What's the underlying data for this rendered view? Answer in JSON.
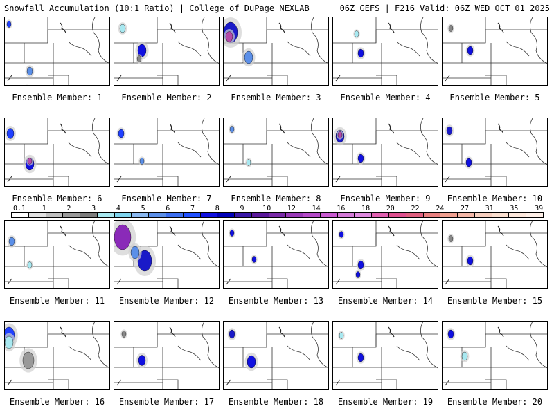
{
  "header": {
    "left": "Snowfall Accumulation (10:1 Ratio) | College of DuPage NEXLAB",
    "right": "06Z GEFS | F216 Valid: 06Z WED OCT 01 2025"
  },
  "panel_label_prefix": "Ensemble Member: ",
  "members": [
    {
      "n": "1",
      "blobs": [
        [
          6,
          10,
          3,
          "#2040ff"
        ],
        [
          36,
          78,
          4,
          "#5b8fe8"
        ],
        [
          32,
          102,
          2,
          "#1010ff"
        ]
      ]
    },
    {
      "n": "2",
      "blobs": [
        [
          12,
          16,
          4,
          "#a8e8f0"
        ],
        [
          40,
          48,
          6,
          "#1010e0"
        ],
        [
          36,
          60,
          3,
          "#888888"
        ]
      ]
    },
    {
      "n": "3",
      "blobs": [
        [
          10,
          22,
          10,
          "#1a1ac8"
        ],
        [
          8,
          28,
          5,
          "#b44aa8"
        ],
        [
          36,
          58,
          6,
          "#5b8fe8"
        ]
      ]
    },
    {
      "n": "4",
      "blobs": [
        [
          34,
          24,
          3,
          "#a8e8f0"
        ],
        [
          40,
          52,
          4,
          "#1010e0"
        ]
      ]
    },
    {
      "n": "5",
      "blobs": [
        [
          12,
          16,
          3,
          "#888888"
        ],
        [
          40,
          48,
          4,
          "#1010e0"
        ]
      ]
    },
    {
      "n": "6",
      "blobs": [
        [
          8,
          22,
          5,
          "#2040ff"
        ],
        [
          36,
          66,
          6,
          "#1010e0"
        ],
        [
          36,
          62,
          3,
          "#b44aa8"
        ]
      ]
    },
    {
      "n": "7",
      "blobs": [
        [
          10,
          22,
          4,
          "#2040ff"
        ],
        [
          40,
          62,
          3,
          "#5b8fe8"
        ]
      ]
    },
    {
      "n": "8",
      "blobs": [
        [
          12,
          16,
          3,
          "#5b8fe8"
        ],
        [
          36,
          64,
          3,
          "#a8e8f0"
        ]
      ]
    },
    {
      "n": "9",
      "blobs": [
        [
          10,
          26,
          6,
          "#1a1ac8"
        ],
        [
          10,
          24,
          3,
          "#b44aa8"
        ],
        [
          40,
          58,
          4,
          "#1010e0"
        ]
      ]
    },
    {
      "n": "10",
      "blobs": [
        [
          10,
          18,
          4,
          "#1a1ac8"
        ],
        [
          38,
          64,
          4,
          "#1010e0"
        ]
      ]
    },
    {
      "n": "11",
      "blobs": [
        [
          10,
          30,
          4,
          "#5b8fe8"
        ],
        [
          36,
          64,
          3,
          "#a8e8f0"
        ]
      ]
    },
    {
      "n": "12",
      "blobs": [
        [
          12,
          24,
          12,
          "#8a2ab8"
        ],
        [
          44,
          58,
          10,
          "#1a1ac8"
        ],
        [
          30,
          46,
          6,
          "#5b8fe8"
        ]
      ]
    },
    {
      "n": "13",
      "blobs": [
        [
          12,
          18,
          3,
          "#1010e0"
        ],
        [
          44,
          56,
          3,
          "#1010e0"
        ]
      ]
    },
    {
      "n": "14",
      "blobs": [
        [
          12,
          20,
          3,
          "#1010e0"
        ],
        [
          40,
          64,
          4,
          "#1010e0"
        ],
        [
          36,
          78,
          3,
          "#1010e0"
        ]
      ]
    },
    {
      "n": "15",
      "blobs": [
        [
          12,
          26,
          3,
          "#888888"
        ],
        [
          40,
          58,
          4,
          "#1010e0"
        ]
      ]
    },
    {
      "n": "16",
      "blobs": [
        [
          6,
          20,
          8,
          "#2040ff"
        ],
        [
          6,
          30,
          6,
          "#a8e8f0"
        ],
        [
          34,
          56,
          8,
          "#999999"
        ]
      ]
    },
    {
      "n": "17",
      "blobs": [
        [
          14,
          18,
          3,
          "#888888"
        ],
        [
          40,
          56,
          5,
          "#1010e0"
        ]
      ]
    },
    {
      "n": "18",
      "blobs": [
        [
          12,
          18,
          4,
          "#1a1ac8"
        ],
        [
          40,
          58,
          6,
          "#1010e0"
        ]
      ]
    },
    {
      "n": "19",
      "blobs": [
        [
          12,
          20,
          3,
          "#a8e8f0"
        ],
        [
          40,
          52,
          4,
          "#1010e0"
        ]
      ]
    },
    {
      "n": "20",
      "blobs": [
        [
          12,
          18,
          4,
          "#1010e0"
        ],
        [
          32,
          50,
          4,
          "#a8e8f0"
        ]
      ]
    }
  ],
  "colorbar": {
    "labels": [
      "0.1",
      "1",
      "2",
      "3",
      "4",
      "5",
      "6",
      "7",
      "8",
      "9",
      "10",
      "12",
      "14",
      "16",
      "18",
      "20",
      "22",
      "24",
      "27",
      "31",
      "35",
      "39"
    ],
    "colors": [
      "#ffffff",
      "#e2e2e2",
      "#bfbfbf",
      "#9a9a9a",
      "#7d7d7d",
      "#a8e8f0",
      "#7fd4ee",
      "#8ab8f0",
      "#5b8fe8",
      "#3b6ef0",
      "#2050ff",
      "#1010e0",
      "#0000b8",
      "#3a18a8",
      "#5a189a",
      "#7a2aa8",
      "#9a3ab8",
      "#b44ac8",
      "#c85ad0",
      "#d47ad8",
      "#e08ae0",
      "#e060b0",
      "#e05090",
      "#e06080",
      "#e88080",
      "#f0a090",
      "#f4b8a8",
      "#f8d0c0",
      "#fbe0d0",
      "#fde8dc",
      "#fff0e8"
    ]
  }
}
